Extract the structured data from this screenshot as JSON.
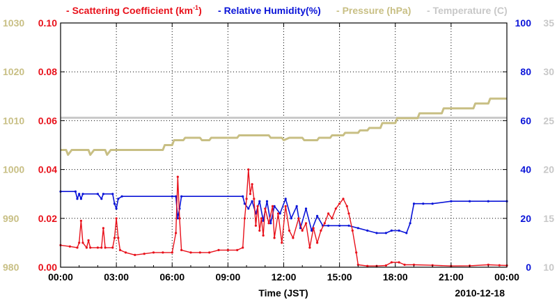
{
  "chart_data": {
    "type": "line",
    "legend": [
      {
        "name": "Scattering Coefficient",
        "unit_base": "km",
        "unit_sup": "-1",
        "color": "#e8101a"
      },
      {
        "name": "Relative Humidity(%)",
        "color": "#0a14d8"
      },
      {
        "name": "Pressure (hPa)",
        "color": "#c8bf84"
      },
      {
        "name": "Temperature (C)",
        "color": "#c8c8c8"
      }
    ],
    "xlabel": "Time (JST)",
    "date_label": "2010-12-18",
    "x_ticks": [
      "00:00",
      "03:00",
      "06:00",
      "09:00",
      "12:00",
      "15:00",
      "18:00",
      "21:00",
      "00:00"
    ],
    "xlim_hours": [
      0,
      24
    ],
    "axes": {
      "pressure": {
        "range": [
          980,
          1030
        ],
        "ticks": [
          "1030",
          "1020",
          "1010",
          "1000",
          "990",
          "980"
        ],
        "color": "#c8bf84"
      },
      "scattering": {
        "range": [
          0.0,
          0.1
        ],
        "ticks": [
          "0.10",
          "0.08",
          "0.06",
          "0.04",
          "0.02",
          "0.00"
        ],
        "color": "#e8101a"
      },
      "humidity": {
        "range": [
          0,
          100
        ],
        "ticks": [
          "100",
          "80",
          "60",
          "40",
          "20",
          "0"
        ],
        "color": "#0a14d8"
      },
      "temperature": {
        "range": [
          10,
          35
        ],
        "ticks": [
          "35",
          "30",
          "25",
          "20",
          "15",
          "10"
        ],
        "color": "#c8c8c8"
      }
    },
    "series": [
      {
        "name": "Scattering Coefficient",
        "axis": "scattering",
        "points": [
          [
            0,
            0.009
          ],
          [
            0.5,
            0.0085
          ],
          [
            0.9,
            0.008
          ],
          [
            1.0,
            0.01
          ],
          [
            1.1,
            0.019
          ],
          [
            1.2,
            0.01
          ],
          [
            1.4,
            0.008
          ],
          [
            1.5,
            0.011
          ],
          [
            1.6,
            0.008
          ],
          [
            2.0,
            0.008
          ],
          [
            2.2,
            0.008
          ],
          [
            2.3,
            0.016
          ],
          [
            2.4,
            0.008
          ],
          [
            2.8,
            0.008
          ],
          [
            2.9,
            0.012
          ],
          [
            3.0,
            0.02
          ],
          [
            3.1,
            0.012
          ],
          [
            3.2,
            0.007
          ],
          [
            3.5,
            0.006
          ],
          [
            4.0,
            0.005
          ],
          [
            4.5,
            0.0055
          ],
          [
            5.0,
            0.006
          ],
          [
            5.5,
            0.006
          ],
          [
            6.0,
            0.006
          ],
          [
            6.2,
            0.014
          ],
          [
            6.3,
            0.037
          ],
          [
            6.4,
            0.02
          ],
          [
            6.5,
            0.007
          ],
          [
            7.0,
            0.006
          ],
          [
            7.5,
            0.006
          ],
          [
            8.0,
            0.006
          ],
          [
            8.5,
            0.007
          ],
          [
            9.0,
            0.007
          ],
          [
            9.5,
            0.007
          ],
          [
            9.8,
            0.008
          ],
          [
            9.9,
            0.02
          ],
          [
            10.0,
            0.028
          ],
          [
            10.1,
            0.04
          ],
          [
            10.2,
            0.03
          ],
          [
            10.3,
            0.034
          ],
          [
            10.4,
            0.028
          ],
          [
            10.5,
            0.017
          ],
          [
            10.6,
            0.025
          ],
          [
            10.7,
            0.015
          ],
          [
            10.8,
            0.02
          ],
          [
            10.9,
            0.013
          ],
          [
            11.0,
            0.024
          ],
          [
            11.2,
            0.018
          ],
          [
            11.4,
            0.025
          ],
          [
            11.5,
            0.012
          ],
          [
            11.7,
            0.022
          ],
          [
            11.9,
            0.01
          ],
          [
            12.1,
            0.025
          ],
          [
            12.3,
            0.015
          ],
          [
            12.5,
            0.012
          ],
          [
            12.8,
            0.02
          ],
          [
            13.0,
            0.015
          ],
          [
            13.2,
            0.018
          ],
          [
            13.4,
            0.008
          ],
          [
            13.6,
            0.016
          ],
          [
            13.8,
            0.01
          ],
          [
            14.0,
            0.015
          ],
          [
            14.2,
            0.018
          ],
          [
            14.4,
            0.022
          ],
          [
            14.6,
            0.02
          ],
          [
            14.8,
            0.024
          ],
          [
            15.0,
            0.026
          ],
          [
            15.2,
            0.028
          ],
          [
            15.4,
            0.025
          ],
          [
            15.5,
            0.022
          ],
          [
            15.7,
            0.015
          ],
          [
            15.9,
            0.006
          ],
          [
            16.0,
            0.001
          ],
          [
            16.5,
            0.0005
          ],
          [
            17.0,
            0.0005
          ],
          [
            17.5,
            0.0007
          ],
          [
            17.8,
            0.002
          ],
          [
            18.2,
            0.002
          ],
          [
            18.5,
            0.001
          ],
          [
            19.0,
            0.001
          ],
          [
            20.0,
            0.0008
          ],
          [
            21.0,
            0.0005
          ],
          [
            22.0,
            0.0006
          ],
          [
            23.0,
            0.001
          ],
          [
            23.6,
            0.0008
          ],
          [
            24.0,
            0.0007
          ]
        ]
      },
      {
        "name": "Relative Humidity(%)",
        "axis": "humidity",
        "points": [
          [
            0,
            31
          ],
          [
            0.8,
            31
          ],
          [
            0.9,
            28
          ],
          [
            1.0,
            30
          ],
          [
            1.1,
            28
          ],
          [
            1.2,
            30
          ],
          [
            2.0,
            30
          ],
          [
            2.2,
            28
          ],
          [
            2.3,
            30
          ],
          [
            2.8,
            30
          ],
          [
            2.9,
            26
          ],
          [
            3.0,
            24
          ],
          [
            3.1,
            28
          ],
          [
            3.3,
            29
          ],
          [
            6.0,
            29
          ],
          [
            6.2,
            29
          ],
          [
            6.3,
            20
          ],
          [
            6.4,
            24
          ],
          [
            6.5,
            29
          ],
          [
            9.8,
            29
          ],
          [
            9.9,
            26
          ],
          [
            10.1,
            24
          ],
          [
            10.3,
            27
          ],
          [
            10.5,
            22
          ],
          [
            10.7,
            27
          ],
          [
            10.9,
            19
          ],
          [
            11.1,
            27
          ],
          [
            11.3,
            18
          ],
          [
            11.5,
            25
          ],
          [
            11.8,
            22
          ],
          [
            12.1,
            28
          ],
          [
            12.4,
            20
          ],
          [
            12.7,
            25
          ],
          [
            12.9,
            16
          ],
          [
            13.2,
            24
          ],
          [
            13.5,
            15
          ],
          [
            13.8,
            21
          ],
          [
            14.1,
            17
          ],
          [
            14.4,
            17
          ],
          [
            15.0,
            17
          ],
          [
            15.5,
            17
          ],
          [
            16.0,
            16
          ],
          [
            16.5,
            15
          ],
          [
            17.0,
            14
          ],
          [
            17.5,
            14
          ],
          [
            17.8,
            15
          ],
          [
            18.2,
            15
          ],
          [
            18.6,
            14
          ],
          [
            18.8,
            18
          ],
          [
            19.0,
            26
          ],
          [
            19.5,
            26
          ],
          [
            20.0,
            26
          ],
          [
            21.0,
            27
          ],
          [
            22.0,
            27
          ],
          [
            23.0,
            27
          ],
          [
            24.0,
            27
          ]
        ]
      },
      {
        "name": "Pressure (hPa)",
        "axis": "pressure",
        "points": [
          [
            0,
            1004
          ],
          [
            0.3,
            1004
          ],
          [
            0.4,
            1003
          ],
          [
            0.6,
            1004
          ],
          [
            1.5,
            1004
          ],
          [
            1.6,
            1003
          ],
          [
            1.8,
            1004
          ],
          [
            2.4,
            1004
          ],
          [
            2.5,
            1003
          ],
          [
            2.7,
            1004
          ],
          [
            5.5,
            1004
          ],
          [
            5.6,
            1005
          ],
          [
            6.0,
            1005
          ],
          [
            6.1,
            1006
          ],
          [
            6.6,
            1006
          ],
          [
            6.7,
            1006.5
          ],
          [
            7.5,
            1006.5
          ],
          [
            7.6,
            1006
          ],
          [
            8.0,
            1006
          ],
          [
            8.1,
            1006.5
          ],
          [
            9.5,
            1006.5
          ],
          [
            9.6,
            1007
          ],
          [
            11.2,
            1007
          ],
          [
            11.3,
            1006.5
          ],
          [
            11.9,
            1006.5
          ],
          [
            12.0,
            1006
          ],
          [
            12.3,
            1006.5
          ],
          [
            13.0,
            1006.5
          ],
          [
            13.1,
            1006
          ],
          [
            13.8,
            1006
          ],
          [
            13.9,
            1006.5
          ],
          [
            14.5,
            1006.5
          ],
          [
            14.6,
            1007
          ],
          [
            15.2,
            1007
          ],
          [
            15.3,
            1007.5
          ],
          [
            16.0,
            1007.5
          ],
          [
            16.1,
            1008
          ],
          [
            16.5,
            1008
          ],
          [
            16.6,
            1008.5
          ],
          [
            17.2,
            1008.5
          ],
          [
            17.3,
            1009.5
          ],
          [
            18.0,
            1009.5
          ],
          [
            18.1,
            1010.5
          ],
          [
            19.2,
            1010.5
          ],
          [
            19.3,
            1011.5
          ],
          [
            20.5,
            1011.5
          ],
          [
            20.6,
            1012.5
          ],
          [
            22.2,
            1012.5
          ],
          [
            22.3,
            1013.5
          ],
          [
            23.0,
            1013.5
          ],
          [
            23.1,
            1014.5
          ],
          [
            24.0,
            1014.5
          ]
        ]
      },
      {
        "name": "Temperature (C)",
        "axis": "temperature",
        "points": [
          [
            0,
            25.3
          ],
          [
            24,
            25.3
          ]
        ]
      }
    ]
  }
}
